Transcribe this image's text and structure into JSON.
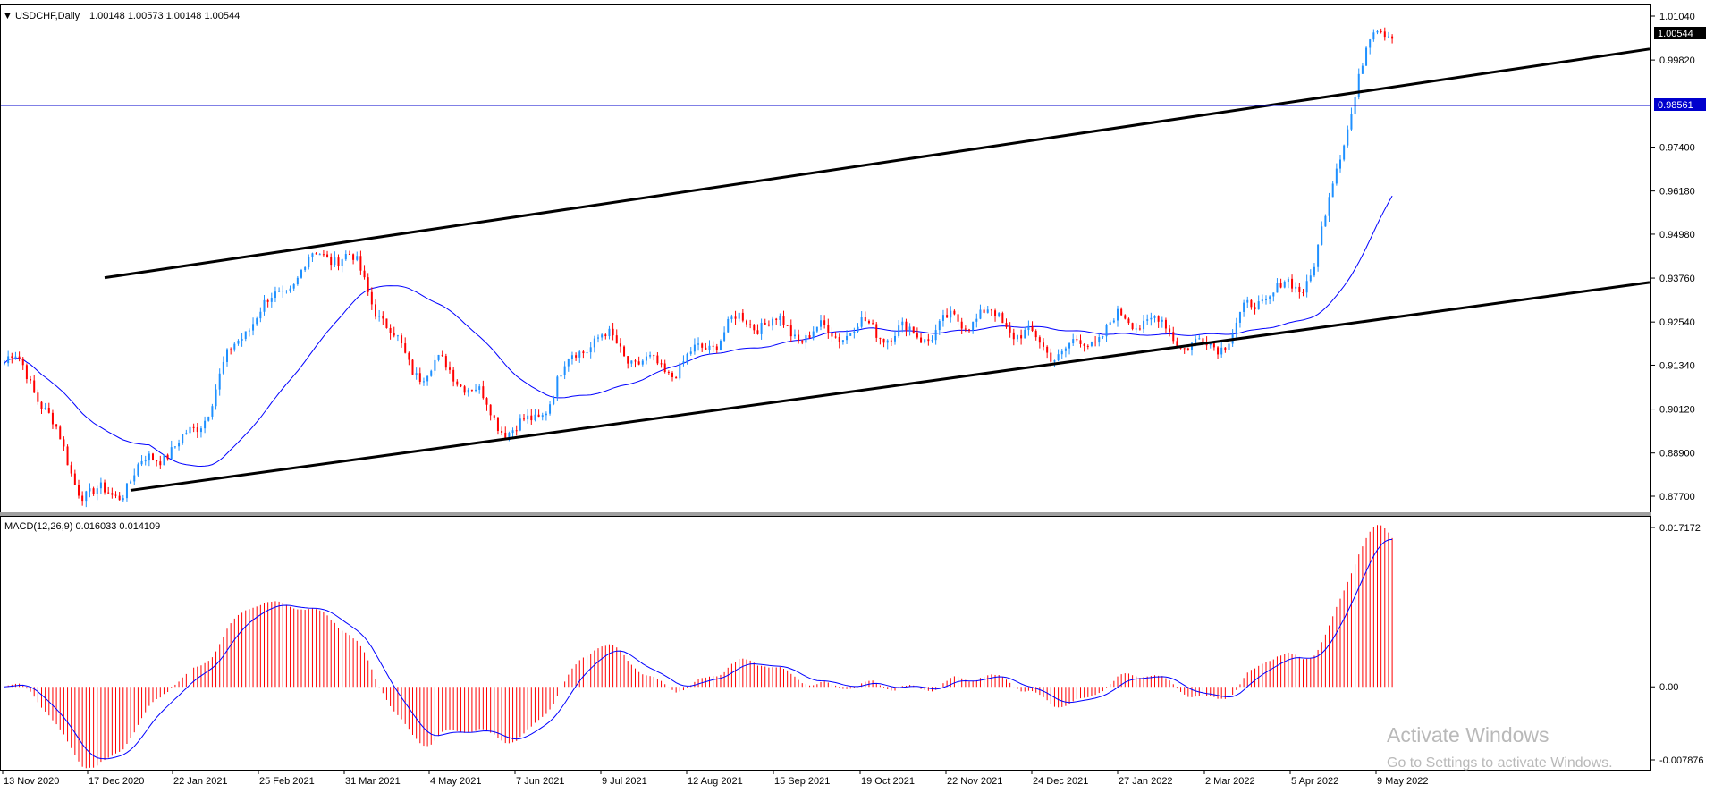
{
  "header": {
    "symbol": "USDCHF,Daily",
    "ohlc": "1.00148 1.00573 1.00148 1.00544",
    "macd_label": "MACD(12,26,9) 0.016033 0.014109"
  },
  "price_panel": {
    "y_ticks": [
      "1.01040",
      "0.99820",
      "0.97400",
      "0.96180",
      "0.94980",
      "0.93760",
      "0.92540",
      "0.91340",
      "0.90120",
      "0.88900",
      "0.87700"
    ],
    "current_price": "1.00544",
    "hline_price": "0.98561"
  },
  "macd_panel": {
    "y_ticks": [
      "0.017172",
      "0.00",
      "-0.007876"
    ]
  },
  "x_labels": [
    "13 Nov 2020",
    "17 Dec 2020",
    "22 Jan 2021",
    "25 Feb 2021",
    "31 Mar 2021",
    "4 May 2021",
    "7 Jun 2021",
    "9 Jul 2021",
    "12 Aug 2021",
    "15 Sep 2021",
    "19 Oct 2021",
    "22 Nov 2021",
    "24 Dec 2021",
    "27 Jan 2022",
    "2 Mar 2022",
    "5 Apr 2022",
    "9 May 2022"
  ],
  "watermark": {
    "line1": "Activate Windows",
    "line2": "Go to Settings to activate Windows."
  },
  "colors": {
    "bull": "#1e90ff",
    "bear": "#ff0000",
    "ma": "#0000ff",
    "hline": "#0000cd",
    "macd_hist": "#ff0000",
    "macd_signal": "#0000ff"
  },
  "chart_data": {
    "type": "candlestick",
    "ylim": [
      0.875,
      1.012
    ],
    "series": [
      {
        "name": "USDCHF",
        "close_path_anchors": [
          [
            "13 Nov 2020",
            0.914
          ],
          [
            "17 Dec 2020",
            0.88
          ],
          [
            "22 Jan 2021",
            0.887
          ],
          [
            "25 Feb 2021",
            0.931
          ],
          [
            "31 Mar 2021",
            0.943
          ],
          [
            "4 May 2021",
            0.91
          ],
          [
            "7 Jun 2021",
            0.899
          ],
          [
            "9 Jul 2021",
            0.918
          ],
          [
            "12 Aug 2021",
            0.915
          ],
          [
            "15 Sep 2021",
            0.927
          ],
          [
            "19 Oct 2021",
            0.92
          ],
          [
            "22 Nov 2021",
            0.927
          ],
          [
            "24 Dec 2021",
            0.92
          ],
          [
            "27 Jan 2022",
            0.923
          ],
          [
            "2 Mar 2022",
            0.922
          ],
          [
            "5 Apr 2022",
            0.932
          ],
          [
            "9 May 2022",
            1.0054
          ]
        ]
      }
    ],
    "trendlines": [
      {
        "name": "channel-upper",
        "from": [
          "17 Dec 2020",
          0.937
        ],
        "to": [
          "9 May 2022",
          0.99
        ]
      },
      {
        "name": "channel-lower",
        "from": [
          "17 Dec 2020",
          0.877
        ],
        "to": [
          "9 May 2022",
          0.926
        ]
      }
    ],
    "horizontal_line": 0.98561,
    "macd": {
      "ylim": [
        -0.007876,
        0.017172
      ],
      "last_main": 0.016033,
      "last_signal": 0.014109
    }
  }
}
